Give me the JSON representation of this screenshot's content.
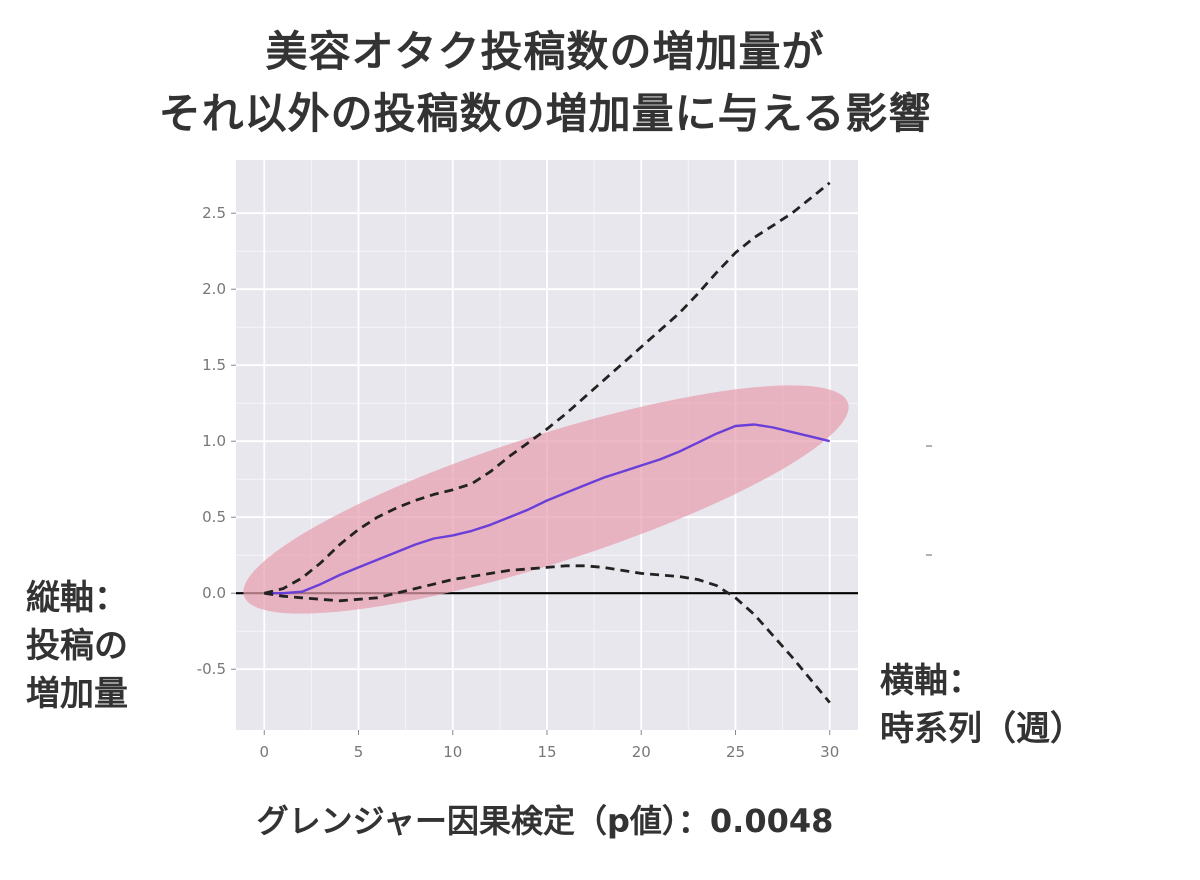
{
  "title_line1": "美容オタク投稿数の増加量が",
  "title_line2": "それ以外の投稿数の増加量に与える影響",
  "y_axis_note": [
    "縦軸：",
    "投稿の",
    "増加量"
  ],
  "x_axis_note": [
    "横軸：",
    "時系列（週）"
  ],
  "footer": "グレンジャー因果検定（p値）：0.0048",
  "colors": {
    "panel": "#e9e7ee",
    "grid": "#ffffff",
    "response": "#6a3fd8",
    "bounds": "#222222",
    "zero": "#000000",
    "highlight": "#e8a0b0"
  },
  "chart_data": {
    "type": "line",
    "xlim": [
      -1.5,
      31.5
    ],
    "ylim": [
      -0.9,
      2.85
    ],
    "x_ticks": [
      "0",
      "5",
      "10",
      "15",
      "20",
      "25",
      "30"
    ],
    "y_ticks": [
      "-0.5",
      "0.0",
      "0.5",
      "1.0",
      "1.5",
      "2.0",
      "2.5"
    ],
    "grid": true,
    "reference_line_y": 0,
    "series": [
      {
        "role": "response",
        "style": "solid",
        "x": [
          0,
          1,
          2,
          3,
          4,
          5,
          6,
          7,
          8,
          9,
          10,
          11,
          12,
          13,
          14,
          15,
          16,
          17,
          18,
          19,
          20,
          21,
          22,
          23,
          24,
          25,
          26,
          27,
          28,
          29,
          30
        ],
        "y": [
          0,
          0,
          0.01,
          0.06,
          0.12,
          0.17,
          0.22,
          0.27,
          0.32,
          0.36,
          0.38,
          0.41,
          0.45,
          0.5,
          0.55,
          0.61,
          0.66,
          0.71,
          0.76,
          0.8,
          0.84,
          0.88,
          0.93,
          0.99,
          1.05,
          1.1,
          1.11,
          1.09,
          1.06,
          1.03,
          1.0
        ]
      },
      {
        "role": "upper",
        "style": "dashed",
        "x": [
          0,
          1,
          2,
          3,
          4,
          5,
          6,
          7,
          8,
          9,
          10,
          11,
          12,
          13,
          14,
          15,
          16,
          17,
          18,
          19,
          20,
          21,
          22,
          23,
          24,
          25,
          26,
          27,
          28,
          29,
          30
        ],
        "y": [
          0,
          0.03,
          0.1,
          0.2,
          0.32,
          0.42,
          0.5,
          0.56,
          0.61,
          0.65,
          0.68,
          0.72,
          0.8,
          0.9,
          0.99,
          1.08,
          1.18,
          1.29,
          1.4,
          1.51,
          1.62,
          1.73,
          1.84,
          1.97,
          2.11,
          2.24,
          2.34,
          2.42,
          2.5,
          2.6,
          2.7
        ]
      },
      {
        "role": "lower",
        "style": "dashed",
        "x": [
          0,
          1,
          2,
          3,
          4,
          5,
          6,
          7,
          8,
          9,
          10,
          11,
          12,
          13,
          14,
          15,
          16,
          17,
          18,
          19,
          20,
          21,
          22,
          23,
          24,
          25,
          26,
          27,
          28,
          29,
          30
        ],
        "y": [
          0,
          -0.02,
          -0.03,
          -0.04,
          -0.05,
          -0.04,
          -0.03,
          0.0,
          0.03,
          0.06,
          0.09,
          0.11,
          0.13,
          0.15,
          0.16,
          0.17,
          0.18,
          0.18,
          0.17,
          0.15,
          0.13,
          0.12,
          0.11,
          0.09,
          0.05,
          -0.03,
          -0.14,
          -0.28,
          -0.42,
          -0.57,
          -0.72
        ]
      }
    ]
  }
}
